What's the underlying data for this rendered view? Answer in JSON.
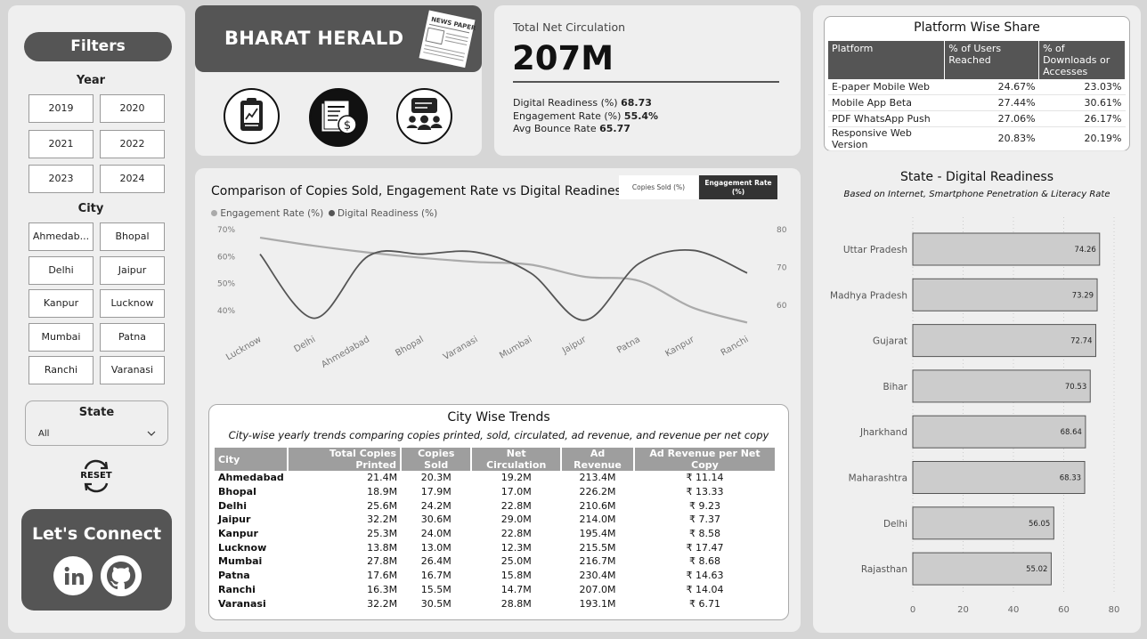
{
  "filters": {
    "title": "Filters",
    "year_label": "Year",
    "years": [
      "2019",
      "2020",
      "2021",
      "2022",
      "2023",
      "2024"
    ],
    "city_label": "City",
    "cities": [
      "Ahmedab...",
      "Bhopal",
      "Delhi",
      "Jaipur",
      "Kanpur",
      "Lucknow",
      "Mumbai",
      "Patna",
      "Ranchi",
      "Varanasi"
    ],
    "state_label": "State",
    "state_value": "All",
    "reset_label": "RESET",
    "connect_label": "Let's Connect"
  },
  "header": {
    "brand": "BHARAT HERALD",
    "newspaper_text": "NEWS PAPER",
    "icons": [
      "clipboard-chart-icon",
      "newspaper-money-icon",
      "community-chat-icon"
    ]
  },
  "kpi": {
    "title": "Total Net Circulation",
    "value": "207M",
    "lines": [
      {
        "label": "Digital Readiness (%)",
        "value": "68.73"
      },
      {
        "label": "Engagement Rate (%)",
        "value": "55.4%"
      },
      {
        "label": "Avg Bounce Rate",
        "value": "65.77"
      }
    ]
  },
  "combo": {
    "title": "Comparison of Copies Sold, Engagement Rate vs Digital Readiness",
    "toggle": [
      "Copies Sold (%)",
      "Engagement Rate (%)"
    ],
    "legend": [
      "Engagement Rate (%)",
      "Digital Readiness (%)"
    ]
  },
  "city_trends": {
    "title": "City Wise Trends",
    "subtitle": "City-wise yearly trends comparing copies printed, sold, circulated, ad revenue, and revenue per net copy",
    "columns": [
      "City",
      "Total Copies Printed",
      "Copies Sold",
      "Net Circulation",
      "Ad Revenue",
      "Ad Revenue per Net Copy"
    ],
    "rows": [
      [
        "Ahmedabad",
        "21.4M",
        "20.3M",
        "19.2M",
        "213.4M",
        "₹ 11.14"
      ],
      [
        "Bhopal",
        "18.9M",
        "17.9M",
        "17.0M",
        "226.2M",
        "₹ 13.33"
      ],
      [
        "Delhi",
        "25.6M",
        "24.2M",
        "22.8M",
        "210.6M",
        "₹ 9.23"
      ],
      [
        "Jaipur",
        "32.2M",
        "30.6M",
        "29.0M",
        "214.0M",
        "₹ 7.37"
      ],
      [
        "Kanpur",
        "25.3M",
        "24.0M",
        "22.8M",
        "195.4M",
        "₹ 8.58"
      ],
      [
        "Lucknow",
        "13.8M",
        "13.0M",
        "12.3M",
        "215.5M",
        "₹ 17.47"
      ],
      [
        "Mumbai",
        "27.8M",
        "26.4M",
        "25.0M",
        "216.7M",
        "₹ 8.68"
      ],
      [
        "Patna",
        "17.6M",
        "16.7M",
        "15.8M",
        "230.4M",
        "₹ 14.63"
      ],
      [
        "Ranchi",
        "16.3M",
        "15.5M",
        "14.7M",
        "207.0M",
        "₹ 14.04"
      ],
      [
        "Varanasi",
        "32.2M",
        "30.5M",
        "28.8M",
        "193.1M",
        "₹ 6.71"
      ]
    ]
  },
  "platform": {
    "title": "Platform Wise Share",
    "columns": [
      "Platform",
      "% of Users Reached",
      "% of Downloads or Accesses"
    ],
    "rows": [
      [
        "E-paper Mobile Web",
        "24.67%",
        "23.03%"
      ],
      [
        "Mobile App Beta",
        "27.44%",
        "30.61%"
      ],
      [
        "PDF WhatsApp Push",
        "27.06%",
        "26.17%"
      ],
      [
        "Responsive Web Version",
        "20.83%",
        "20.19%"
      ]
    ]
  },
  "chart_data": [
    {
      "type": "line",
      "title": "Comparison of Copies Sold, Engagement Rate vs Digital Readiness",
      "categories": [
        "Lucknow",
        "Delhi",
        "Ahmedabad",
        "Bhopal",
        "Varanasi",
        "Mumbai",
        "Jaipur",
        "Patna",
        "Kanpur",
        "Ranchi"
      ],
      "series": [
        {
          "name": "Engagement Rate (%)",
          "axis": "left",
          "color": "#aaaaaa",
          "values": [
            67,
            64,
            61.5,
            59.5,
            58,
            57,
            52.5,
            51,
            41,
            35.5
          ]
        },
        {
          "name": "Digital Readiness (%)",
          "axis": "right",
          "color": "#555555",
          "values": [
            73.5,
            56.5,
            73,
            73.5,
            74,
            68.5,
            56,
            71,
            74.5,
            68.5
          ]
        }
      ],
      "y_left_ticks": [
        "70%",
        "60%",
        "50%",
        "40%"
      ],
      "y_right_ticks": [
        "80",
        "70",
        "60"
      ],
      "ylim_left": [
        35,
        70
      ],
      "ylim_right": [
        55,
        80
      ],
      "legend_position": "top-left"
    },
    {
      "type": "bar",
      "orientation": "horizontal",
      "title": "State - Digital Readiness",
      "subtitle": "Based on Internet, Smartphone Penetration & Literacy Rate",
      "categories": [
        "Uttar Pradesh",
        "Madhya Pradesh",
        "Gujarat",
        "Bihar",
        "Jharkhand",
        "Maharashtra",
        "Delhi",
        "Rajasthan"
      ],
      "values": [
        74.26,
        73.29,
        72.74,
        70.53,
        68.64,
        68.33,
        56.05,
        55.02
      ],
      "x_ticks": [
        "0",
        "20",
        "40",
        "60",
        "80"
      ],
      "xlim": [
        0,
        80
      ],
      "bar_color": "#cccccc"
    }
  ]
}
